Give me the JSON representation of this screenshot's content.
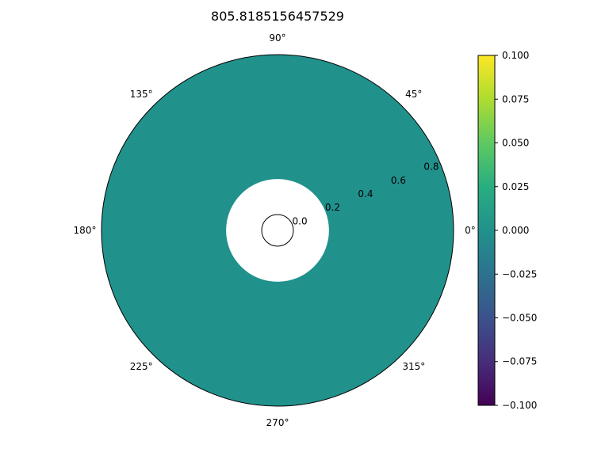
{
  "chart_data": {
    "type": "heatmap",
    "projection": "polar",
    "title": "805.8185156457529",
    "value": 0.0,
    "rlim": [
      0.0,
      0.9
    ],
    "r_data_min": 0.2,
    "theta_tick_labels": [
      "0°",
      "45°",
      "90°",
      "135°",
      "180°",
      "225°",
      "270°",
      "315°"
    ],
    "theta_ticks_deg": [
      0,
      45,
      90,
      135,
      180,
      225,
      270,
      315
    ],
    "r_tick_labels": [
      "0.0",
      "0.2",
      "0.4",
      "0.6",
      "0.8"
    ],
    "r_ticks": [
      0.0,
      0.2,
      0.4,
      0.6,
      0.8
    ],
    "r_label_angle_deg": 22.5,
    "grid": false,
    "colormap": "viridis",
    "colorbar": {
      "placement": "right",
      "range": [
        -0.1,
        0.1
      ],
      "ticks": [
        0.1,
        0.075,
        0.05,
        0.025,
        0.0,
        -0.025,
        -0.05,
        -0.075,
        -0.1
      ],
      "tick_labels": [
        "0.100",
        "0.075",
        "0.050",
        "0.025",
        "0.000",
        "−0.025",
        "−0.050",
        "−0.075",
        "−0.100"
      ]
    },
    "fill_color": "#21918c"
  }
}
